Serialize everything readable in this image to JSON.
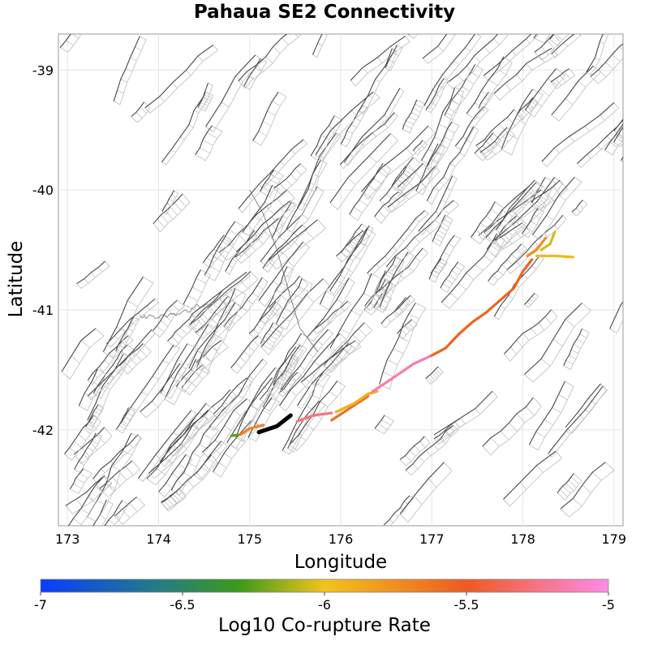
{
  "title": "Pahaua SE2 Connectivity",
  "axes": {
    "xlabel": "Longitude",
    "ylabel": "Latitude",
    "xticks": [
      "173",
      "174",
      "175",
      "176",
      "177",
      "178",
      "179"
    ],
    "yticks": [
      "-39",
      "-40",
      "-41",
      "-42"
    ],
    "xlim": [
      172.9,
      179.1
    ],
    "ylim": [
      -42.8,
      -38.7
    ]
  },
  "colorbar": {
    "label": "Log10 Co-rupture Rate",
    "ticks": [
      "-7",
      "-6.5",
      "-6",
      "-5.5",
      "-5"
    ],
    "range": [
      -7,
      -5
    ],
    "colors": [
      "#0a3cff",
      "#3d9a1a",
      "#f2c31e",
      "#ee5a22",
      "#ff8be8"
    ]
  },
  "colors": {
    "fault_trace": "#4a4a4a",
    "fault_box": "#bdbdbd",
    "coast": "#777777",
    "source_fault": "#000000"
  },
  "map_data": {
    "source_fault": [
      [
        175.1,
        -42.02
      ],
      [
        175.3,
        -41.97
      ],
      [
        175.45,
        -41.88
      ]
    ],
    "ruptures": [
      {
        "rate": -6.25,
        "path": [
          [
            174.8,
            -42.05
          ],
          [
            174.9,
            -42.04
          ]
        ]
      },
      {
        "rate": -5.7,
        "path": [
          [
            174.9,
            -42.04
          ],
          [
            175.0,
            -41.99
          ],
          [
            175.15,
            -41.96
          ]
        ]
      },
      {
        "rate": -5.25,
        "path": [
          [
            175.52,
            -41.93
          ],
          [
            175.7,
            -41.88
          ],
          [
            175.9,
            -41.86
          ]
        ]
      },
      {
        "rate": -5.6,
        "path": [
          [
            175.9,
            -41.92
          ],
          [
            176.1,
            -41.82
          ],
          [
            176.3,
            -41.72
          ]
        ]
      },
      {
        "rate": -5.9,
        "path": [
          [
            175.95,
            -41.85
          ],
          [
            176.15,
            -41.78
          ],
          [
            176.3,
            -41.7
          ],
          [
            176.4,
            -41.68
          ]
        ]
      },
      {
        "rate": -5.15,
        "path": [
          [
            176.35,
            -41.68
          ],
          [
            176.55,
            -41.58
          ],
          [
            176.8,
            -41.45
          ],
          [
            177.0,
            -41.38
          ]
        ]
      },
      {
        "rate": -5.55,
        "path": [
          [
            177.0,
            -41.38
          ],
          [
            177.15,
            -41.32
          ],
          [
            177.3,
            -41.2
          ],
          [
            177.45,
            -41.1
          ],
          [
            177.6,
            -41.02
          ],
          [
            177.75,
            -40.92
          ],
          [
            177.9,
            -40.82
          ],
          [
            178.0,
            -40.68
          ],
          [
            178.1,
            -40.58
          ]
        ]
      },
      {
        "rate": -5.75,
        "path": [
          [
            178.05,
            -40.55
          ],
          [
            178.15,
            -40.5
          ],
          [
            178.25,
            -40.4
          ]
        ]
      },
      {
        "rate": -5.95,
        "path": [
          [
            178.15,
            -40.55
          ],
          [
            178.35,
            -40.55
          ],
          [
            178.55,
            -40.56
          ]
        ]
      },
      {
        "rate": -6.05,
        "path": [
          [
            178.2,
            -40.5
          ],
          [
            178.3,
            -40.45
          ],
          [
            178.35,
            -40.35
          ]
        ]
      }
    ]
  }
}
